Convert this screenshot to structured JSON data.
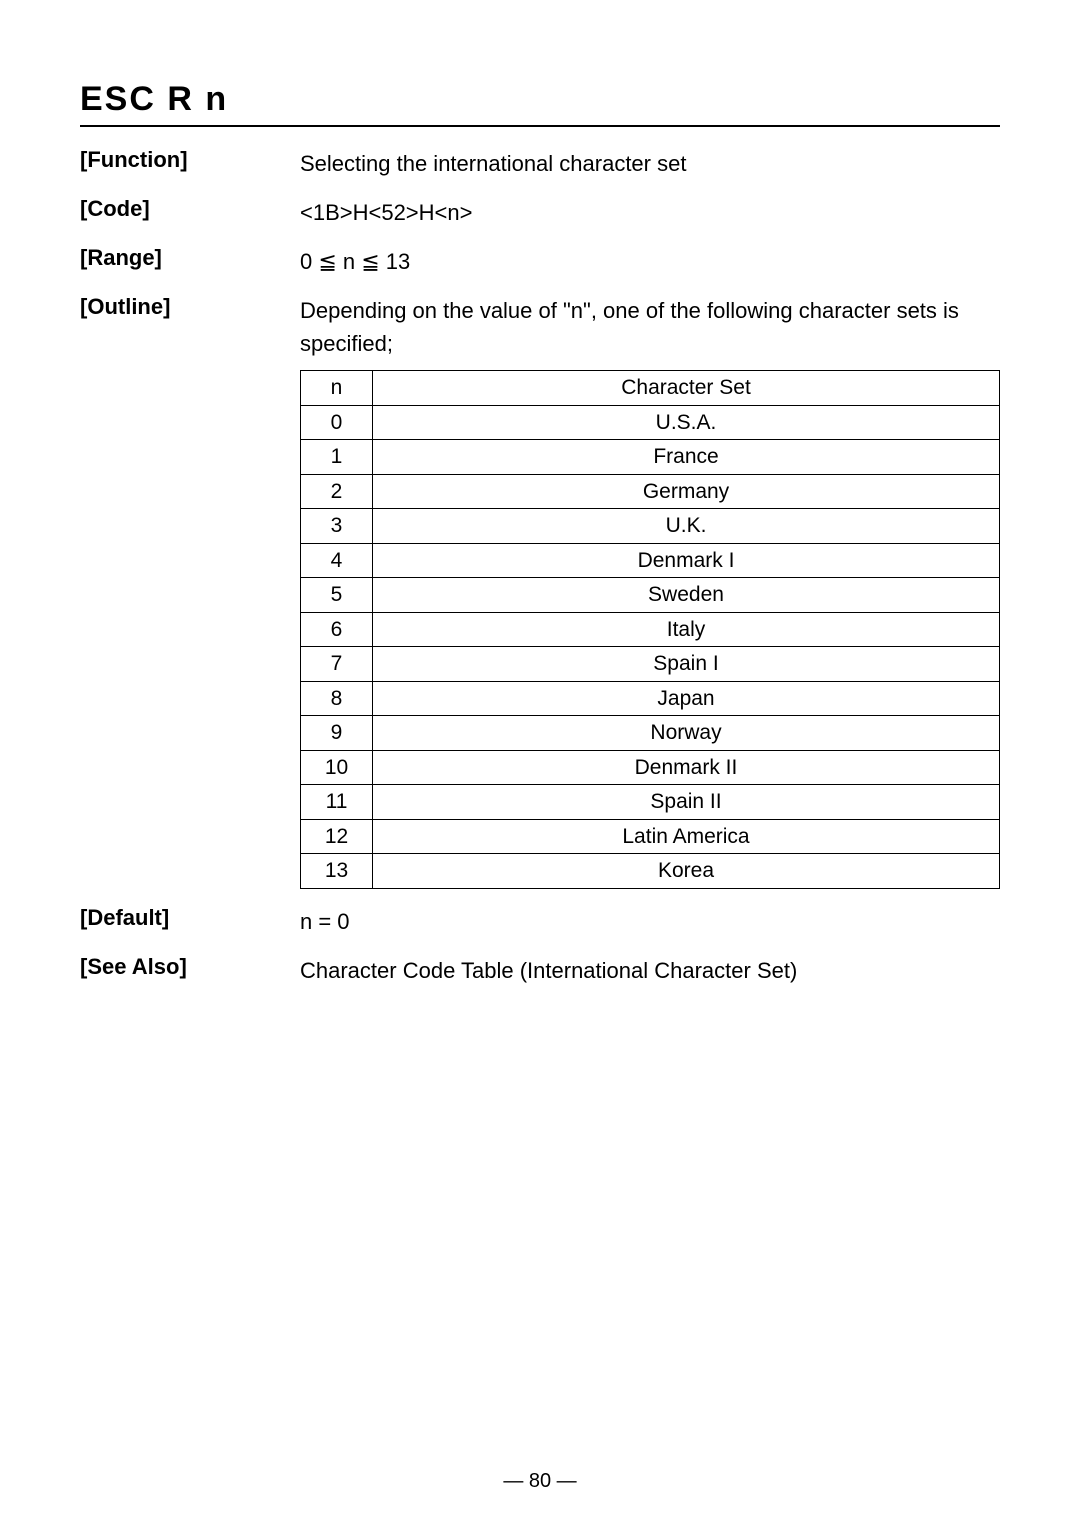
{
  "title": "ESC  R  n",
  "fields": {
    "function": {
      "label": "[Function]",
      "value": "Selecting the international character set"
    },
    "code": {
      "label": "[Code]",
      "value": "<1B>H<52>H<n>"
    },
    "range": {
      "label": "[Range]",
      "value": "0 ≦ n ≦ 13"
    },
    "outline": {
      "label": "[Outline]",
      "value": "Depending on the value of \"n\", one of the following character sets is specified;"
    },
    "default": {
      "label": "[Default]",
      "value": "n = 0"
    },
    "seealso": {
      "label": "[See Also]",
      "value": "Character Code Table (International Character Set)"
    }
  },
  "table": {
    "header": {
      "n": "n",
      "set": "Character Set"
    },
    "rows": [
      {
        "n": "0",
        "set": "U.S.A."
      },
      {
        "n": "1",
        "set": "France"
      },
      {
        "n": "2",
        "set": "Germany"
      },
      {
        "n": "3",
        "set": "U.K."
      },
      {
        "n": "4",
        "set": "Denmark I"
      },
      {
        "n": "5",
        "set": "Sweden"
      },
      {
        "n": "6",
        "set": "Italy"
      },
      {
        "n": "7",
        "set": "Spain I"
      },
      {
        "n": "8",
        "set": "Japan"
      },
      {
        "n": "9",
        "set": "Norway"
      },
      {
        "n": "10",
        "set": "Denmark II"
      },
      {
        "n": "11",
        "set": "Spain II"
      },
      {
        "n": "12",
        "set": "Latin America"
      },
      {
        "n": "13",
        "set": "Korea"
      }
    ]
  },
  "pageNumber": "— 80 —",
  "styling": {
    "body_width": 1080,
    "body_height": 1533,
    "background_color": "#ffffff",
    "text_color": "#000000",
    "title_fontsize": 34,
    "label_fontsize": 22,
    "value_fontsize": 22,
    "table_fontsize": 21,
    "table_border_color": "#000000",
    "col_n_width": 72,
    "label_col_width": 220
  }
}
